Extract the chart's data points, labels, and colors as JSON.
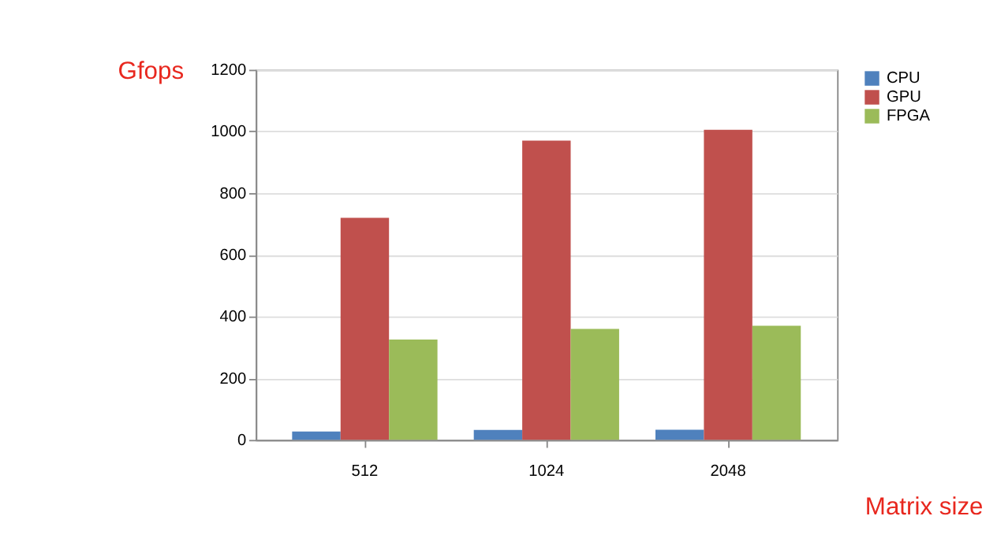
{
  "chart_data": {
    "type": "bar",
    "ylabel": "Gfops",
    "xlabel": "Matrix size",
    "categories": [
      "512",
      "1024",
      "2048"
    ],
    "series": [
      {
        "name": "CPU",
        "color": "#4f81bd",
        "values": [
          27,
          32,
          33
        ]
      },
      {
        "name": "GPU",
        "color": "#c0504d",
        "values": [
          720,
          970,
          1005
        ]
      },
      {
        "name": "FPGA",
        "color": "#9bbb59",
        "values": [
          325,
          360,
          370
        ]
      }
    ],
    "ylim": [
      0,
      1200
    ],
    "yticks": [
      0,
      200,
      400,
      600,
      800,
      1000,
      1200
    ],
    "grid": "y",
    "legend": "right"
  }
}
